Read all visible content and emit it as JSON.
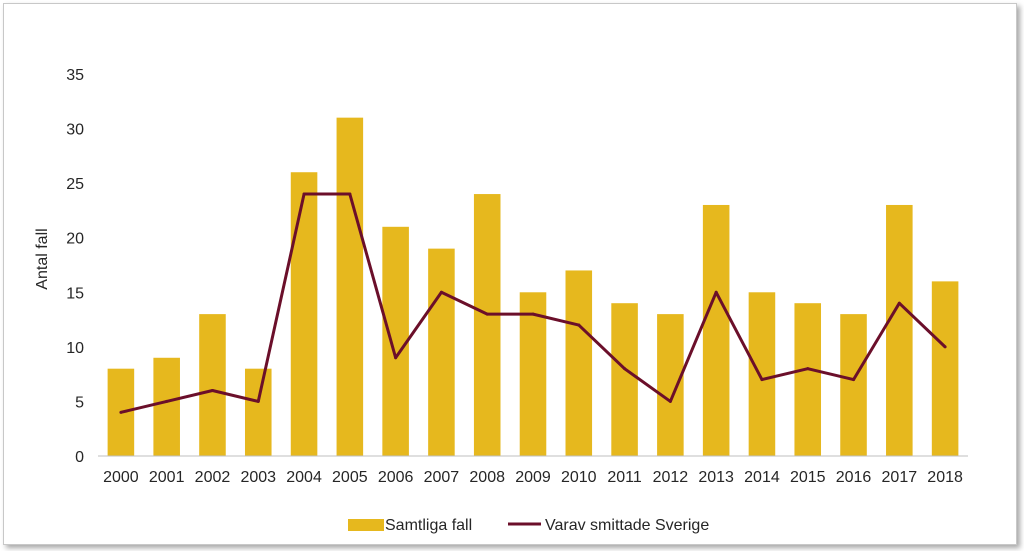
{
  "chart_data": {
    "type": "bar",
    "title": "",
    "xlabel": "",
    "ylabel": "Antal fall",
    "ylim": [
      0,
      35
    ],
    "yticks": [
      0,
      5,
      10,
      15,
      20,
      25,
      30,
      35
    ],
    "grid": false,
    "legend_position": "bottom",
    "categories": [
      "2000",
      "2001",
      "2002",
      "2003",
      "2004",
      "2005",
      "2006",
      "2007",
      "2008",
      "2009",
      "2010",
      "2011",
      "2012",
      "2013",
      "2014",
      "2015",
      "2016",
      "2017",
      "2018"
    ],
    "series": [
      {
        "name": "Samtliga fall",
        "kind": "bar",
        "color": "#E6B81E",
        "values": [
          8,
          9,
          13,
          8,
          26,
          31,
          21,
          19,
          24,
          15,
          17,
          14,
          13,
          23,
          15,
          14,
          13,
          23,
          16
        ]
      },
      {
        "name": "Varav smittade Sverige",
        "kind": "line",
        "color": "#6B0F2A",
        "values": [
          4,
          5,
          6,
          5,
          24,
          24,
          9,
          15,
          13,
          13,
          12,
          8,
          5,
          15,
          7,
          8,
          7,
          14,
          10
        ]
      }
    ]
  }
}
